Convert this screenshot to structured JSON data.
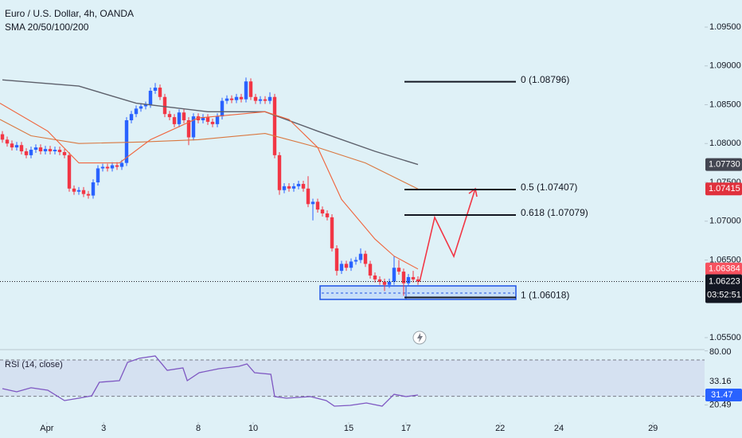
{
  "chart_data": {
    "type": "candlestick",
    "title": "Euro / U.S. Dollar, 4h, OANDA",
    "subtitle": "SMA 20/50/100/200",
    "up_color": "#2962ff",
    "down_color": "#f23645",
    "xlim": [
      -0.5,
      147
    ],
    "ylim": [
      1.05356,
      1.09849
    ],
    "xticks": [
      {
        "value": 9.3,
        "label": "Apr"
      },
      {
        "value": 21.2,
        "label": "3"
      },
      {
        "value": 41,
        "label": "8"
      },
      {
        "value": 52.5,
        "label": "10"
      },
      {
        "value": 72.5,
        "label": "15"
      },
      {
        "value": 84.5,
        "label": "17"
      },
      {
        "value": 104.2,
        "label": "22"
      },
      {
        "value": 116.5,
        "label": "24"
      },
      {
        "value": 136.2,
        "label": "29"
      }
    ],
    "yticks": [
      {
        "value": 1.095,
        "label": "1.09500"
      },
      {
        "value": 1.09,
        "label": "1.09000"
      },
      {
        "value": 1.085,
        "label": "1.08500"
      },
      {
        "value": 1.08,
        "label": "1.08000"
      },
      {
        "value": 1.075,
        "label": "1.07500"
      },
      {
        "value": 1.07,
        "label": "1.07000"
      },
      {
        "value": 1.065,
        "label": "1.06500"
      },
      {
        "value": 1.055,
        "label": "1.05500"
      }
    ],
    "candles": [
      [
        1.0812,
        1.0816,
        1.0801,
        1.0805
      ],
      [
        1.0805,
        1.0809,
        1.0796,
        1.08
      ],
      [
        1.08,
        1.0804,
        1.0791,
        1.0795
      ],
      [
        1.0795,
        1.0802,
        1.0791,
        1.0798
      ],
      [
        1.0798,
        1.0802,
        1.0786,
        1.079
      ],
      [
        1.079,
        1.0794,
        1.0781,
        1.0785
      ],
      [
        1.0785,
        1.0796,
        1.0781,
        1.0792
      ],
      [
        1.0792,
        1.0799,
        1.0788,
        1.0795
      ],
      [
        1.0795,
        1.0799,
        1.0786,
        1.079
      ],
      [
        1.079,
        1.0797,
        1.0786,
        1.0793
      ],
      [
        1.0793,
        1.0797,
        1.0786,
        1.079
      ],
      [
        1.079,
        1.0796,
        1.0786,
        1.0792
      ],
      [
        1.0792,
        1.0796,
        1.0785,
        1.0789
      ],
      [
        1.0789,
        1.0793,
        1.0781,
        1.0785
      ],
      [
        1.0785,
        1.0789,
        1.0738,
        1.0742
      ],
      [
        1.0742,
        1.0746,
        1.0734,
        1.0738
      ],
      [
        1.0738,
        1.0744,
        1.0734,
        1.074
      ],
      [
        1.074,
        1.0744,
        1.0731,
        1.0735
      ],
      [
        1.0735,
        1.0739,
        1.0729,
        1.0733
      ],
      [
        1.0733,
        1.0754,
        1.0729,
        1.075
      ],
      [
        1.075,
        1.0772,
        1.0746,
        1.0768
      ],
      [
        1.0768,
        1.0774,
        1.0764,
        1.077
      ],
      [
        1.077,
        1.0774,
        1.0764,
        1.0768
      ],
      [
        1.0768,
        1.0776,
        1.0764,
        1.0772
      ],
      [
        1.0772,
        1.0776,
        1.0766,
        1.077
      ],
      [
        1.077,
        1.0779,
        1.0766,
        1.0775
      ],
      [
        1.0775,
        1.0834,
        1.0771,
        1.083
      ],
      [
        1.083,
        1.0842,
        1.0826,
        1.0838
      ],
      [
        1.0838,
        1.0849,
        1.0834,
        1.0845
      ],
      [
        1.0845,
        1.0852,
        1.0841,
        1.0848
      ],
      [
        1.0848,
        1.0854,
        1.0844,
        1.085
      ],
      [
        1.085,
        1.0872,
        1.0846,
        1.0868
      ],
      [
        1.0868,
        1.0878,
        1.0864,
        1.0872
      ],
      [
        1.0872,
        1.0876,
        1.0856,
        1.086
      ],
      [
        1.086,
        1.0864,
        1.0834,
        1.0838
      ],
      [
        1.0838,
        1.0842,
        1.083,
        1.0834
      ],
      [
        1.0834,
        1.0838,
        1.0821,
        1.0825
      ],
      [
        1.0825,
        1.0844,
        1.0821,
        1.084
      ],
      [
        1.084,
        1.0844,
        1.0826,
        1.083
      ],
      [
        1.083,
        1.0834,
        1.0798,
        1.0808
      ],
      [
        1.0808,
        1.0839,
        1.0804,
        1.0835
      ],
      [
        1.0835,
        1.0839,
        1.0826,
        1.083
      ],
      [
        1.083,
        1.0838,
        1.0826,
        1.0834
      ],
      [
        1.0834,
        1.0838,
        1.0824,
        1.0828
      ],
      [
        1.0828,
        1.0832,
        1.0821,
        1.0825
      ],
      [
        1.0825,
        1.0839,
        1.0821,
        1.0835
      ],
      [
        1.0835,
        1.0859,
        1.0831,
        1.0855
      ],
      [
        1.0855,
        1.0862,
        1.0851,
        1.0858
      ],
      [
        1.0858,
        1.0862,
        1.0852,
        1.0856
      ],
      [
        1.0856,
        1.0864,
        1.0852,
        1.086
      ],
      [
        1.086,
        1.0864,
        1.0853,
        1.0857
      ],
      [
        1.0857,
        1.0885,
        1.0853,
        1.088
      ],
      [
        1.088,
        1.0884,
        1.0856,
        1.086
      ],
      [
        1.086,
        1.0864,
        1.0851,
        1.0855
      ],
      [
        1.0855,
        1.0861,
        1.0851,
        1.0857
      ],
      [
        1.0857,
        1.0861,
        1.0851,
        1.0855
      ],
      [
        1.0855,
        1.0866,
        1.0851,
        1.086
      ],
      [
        1.086,
        1.0864,
        1.0781,
        1.0785
      ],
      [
        1.0785,
        1.0789,
        1.0734,
        1.074
      ],
      [
        1.074,
        1.0749,
        1.0736,
        1.0745
      ],
      [
        1.0745,
        1.0749,
        1.0738,
        1.0742
      ],
      [
        1.0742,
        1.0749,
        1.0738,
        1.0745
      ],
      [
        1.0745,
        1.0752,
        1.0741,
        1.0748
      ],
      [
        1.0748,
        1.0752,
        1.0738,
        1.0742
      ],
      [
        1.0742,
        1.0758,
        1.0718,
        1.0722
      ],
      [
        1.0722,
        1.0729,
        1.0701,
        1.0725
      ],
      [
        1.0725,
        1.0729,
        1.0711,
        1.0715
      ],
      [
        1.0715,
        1.0719,
        1.0706,
        1.071
      ],
      [
        1.071,
        1.0714,
        1.0701,
        1.0705
      ],
      [
        1.0705,
        1.0709,
        1.0661,
        1.0665
      ],
      [
        1.0665,
        1.0669,
        1.063,
        1.0636
      ],
      [
        1.0636,
        1.0649,
        1.0632,
        1.0645
      ],
      [
        1.0645,
        1.0649,
        1.0636,
        1.064
      ],
      [
        1.064,
        1.0652,
        1.0636,
        1.0648
      ],
      [
        1.0648,
        1.0654,
        1.0644,
        1.065
      ],
      [
        1.065,
        1.0665,
        1.0646,
        1.0658
      ],
      [
        1.0658,
        1.0662,
        1.0641,
        1.0645
      ],
      [
        1.0645,
        1.0649,
        1.0626,
        1.063
      ],
      [
        1.063,
        1.0634,
        1.0621,
        1.0625
      ],
      [
        1.0625,
        1.0629,
        1.0618,
        1.0622
      ],
      [
        1.0622,
        1.0626,
        1.061,
        1.0618
      ],
      [
        1.0618,
        1.0626,
        1.0614,
        1.0622
      ],
      [
        1.0622,
        1.0655,
        1.0618,
        1.064
      ],
      [
        1.064,
        1.065,
        1.0631,
        1.0635
      ],
      [
        1.0635,
        1.0639,
        1.0604,
        1.062
      ],
      [
        1.062,
        1.0632,
        1.0616,
        1.0628
      ],
      [
        1.0628,
        1.0636,
        1.0621,
        1.0625
      ],
      [
        1.0625,
        1.0629,
        1.0618,
        1.06223
      ]
    ],
    "series": [
      {
        "color": "#5d606b",
        "x": [
          0,
          16,
          28,
          43,
          55,
          66,
          78,
          87
        ],
        "values": [
          1.0882,
          1.0874,
          1.0852,
          1.0841,
          1.0841,
          1.0816,
          1.079,
          1.0773
        ],
        "last_label": "1.07730",
        "label_bg": "#434651",
        "label_fg": "#ffffff"
      },
      {
        "color": "#d9773f",
        "x": [
          -0.5,
          6,
          16,
          29,
          41,
          55,
          66,
          76,
          87
        ],
        "values": [
          1.0831,
          1.081,
          1.08,
          1.0802,
          1.0805,
          1.0813,
          1.0795,
          1.0775,
          1.07415
        ],
        "last_label": "1.07415",
        "label_bg": "#e0313d",
        "label_fg": "#ffffff"
      },
      {
        "color": "#f0643c",
        "x": [
          -0.5,
          9.5,
          16,
          24.5,
          31,
          41,
          55,
          60,
          66,
          71,
          78,
          82,
          87
        ],
        "values": [
          1.0852,
          1.0816,
          1.0775,
          1.0775,
          1.0805,
          1.0833,
          1.0841,
          1.0831,
          1.0795,
          1.0728,
          1.0677,
          1.0655,
          1.06384
        ],
        "last_label": "1.06384",
        "label_bg": "#f7525f",
        "label_fg": "#ffffff"
      }
    ],
    "last_price": 1.06223,
    "countdown": "03:52:51",
    "fib": [
      {
        "label": "0 (1.08796)",
        "price": 1.08796
      },
      {
        "label": "0.5 (1.07407)",
        "price": 1.07407
      },
      {
        "label": "0.618 (1.07079)",
        "price": 1.07079
      },
      {
        "label": "1 (1.06018)",
        "price": 1.06018
      }
    ],
    "rsi": {
      "type": "line",
      "title": "RSI (14, close)",
      "color": "#7e57c2",
      "ylim": [
        1.7,
        80.5
      ],
      "yticks": [
        {
          "value": 80,
          "label": "80.00"
        },
        {
          "value": 20.49,
          "label": "20.49"
        }
      ],
      "bands": [
        70,
        30
      ],
      "ma_value": 33.16,
      "x": [
        0,
        3,
        6,
        9.5,
        13,
        16,
        18.7,
        20.3,
        24.5,
        26.2,
        28.7,
        32,
        34.5,
        37.8,
        38.7,
        41.2,
        45.3,
        49.5,
        51.2,
        52.8,
        56.2,
        57,
        59.5,
        64.5,
        67.8,
        69.5,
        72.8,
        76.2,
        79.5,
        82,
        84.5,
        87
      ],
      "values": [
        38.5,
        35.0,
        39.4,
        36.7,
        25.3,
        28.0,
        30.6,
        45.5,
        47.2,
        67.4,
        71.8,
        74.4,
        58.6,
        61.2,
        47.2,
        56.0,
        60.4,
        63.0,
        65.6,
        56.0,
        54.2,
        29.7,
        28.0,
        29.7,
        25.3,
        19.2,
        20.1,
        22.7,
        19.2,
        32.3,
        29.7,
        31.47
      ]
    }
  }
}
